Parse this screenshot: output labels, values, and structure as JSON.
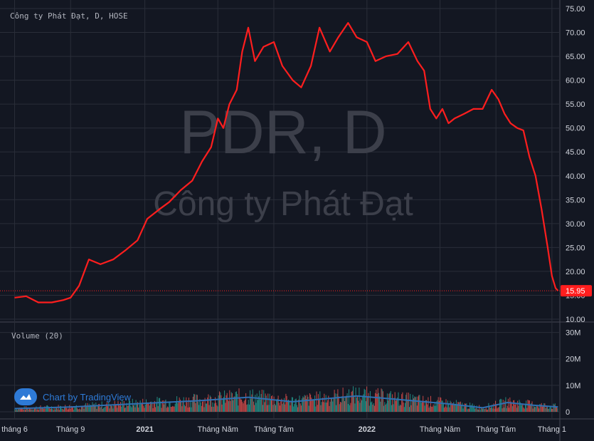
{
  "legend": {
    "symbol_line": "Công ty Phát Đạt, D, HOSE",
    "volume_label": "Volume (20)"
  },
  "watermark": {
    "ticker": "PDR, D",
    "company": "Công ty Phát Đạt"
  },
  "attribution": {
    "text": "Chart by TradingView",
    "icon": "tradingview-cloud-icon"
  },
  "colors": {
    "background": "#131722",
    "price_line": "#ff1e1e",
    "last_price_badge": "#ff1e1e",
    "volume_ma": "#2f6fb2",
    "volume_up": "#26a69a",
    "volume_down": "#ef5350",
    "grid": "#2a2e39",
    "axis_text": "#d1d4dc"
  },
  "chart_data": [
    {
      "type": "line",
      "title": "Công ty Phát Đạt, D, HOSE",
      "series": [
        {
          "name": "PDR",
          "x": [
            "2020-06-01",
            "2020-06-20",
            "2020-07-10",
            "2020-08-01",
            "2020-08-20",
            "2020-09-01",
            "2020-09-15",
            "2020-10-01",
            "2020-10-20",
            "2020-11-10",
            "2020-12-01",
            "2020-12-20",
            "2021-01-05",
            "2021-01-25",
            "2021-02-10",
            "2021-03-01",
            "2021-03-20",
            "2021-04-05",
            "2021-04-20",
            "2021-05-01",
            "2021-05-10",
            "2021-05-20",
            "2021-06-01",
            "2021-06-10",
            "2021-06-20",
            "2021-07-01",
            "2021-07-15",
            "2021-08-01",
            "2021-08-15",
            "2021-09-01",
            "2021-09-15",
            "2021-10-01",
            "2021-10-15",
            "2021-11-01",
            "2021-11-15",
            "2021-12-01",
            "2021-12-15",
            "2022-01-01",
            "2022-01-15",
            "2022-02-01",
            "2022-02-20",
            "2022-03-10",
            "2022-03-25",
            "2022-04-05",
            "2022-04-15",
            "2022-04-25",
            "2022-05-05",
            "2022-05-15",
            "2022-05-25",
            "2022-06-10",
            "2022-06-25",
            "2022-07-10",
            "2022-07-25",
            "2022-08-05",
            "2022-08-15",
            "2022-08-25",
            "2022-09-05",
            "2022-09-15",
            "2022-09-25",
            "2022-10-05",
            "2022-10-15",
            "2022-10-25",
            "2022-11-01",
            "2022-11-07",
            "2022-11-11"
          ],
          "y": [
            14.5,
            14.8,
            13.5,
            13.5,
            14.0,
            14.5,
            17.0,
            22.5,
            21.5,
            22.5,
            24.5,
            26.5,
            31.0,
            33.0,
            34.5,
            37.0,
            39.0,
            43.0,
            46.0,
            52.0,
            50.0,
            55.0,
            58.0,
            66.0,
            71.0,
            64.0,
            67.0,
            68.0,
            63.0,
            60.0,
            58.5,
            63.0,
            71.0,
            66.0,
            69.0,
            72.0,
            69.0,
            68.0,
            64.0,
            65.0,
            65.5,
            68.0,
            64.0,
            62.0,
            54.0,
            52.0,
            54.0,
            51.0,
            52.0,
            53.0,
            54.0,
            54.0,
            58.0,
            56.0,
            53.0,
            51.0,
            50.0,
            49.5,
            44.0,
            40.0,
            33.0,
            25.0,
            19.0,
            16.5,
            15.95
          ]
        }
      ],
      "ylim": [
        10,
        75
      ],
      "y_ticks": [
        "75.00",
        "70.00",
        "65.00",
        "60.00",
        "55.00",
        "50.00",
        "45.00",
        "40.00",
        "35.00",
        "30.00",
        "25.00",
        "20.00",
        "15.00",
        "10.00"
      ],
      "x_ticks": [
        "tháng 6",
        "Tháng 9",
        "2021",
        "Tháng Năm",
        "Tháng Tám",
        "2022",
        "Tháng Năm",
        "Tháng Tám",
        "Tháng 1"
      ],
      "x_tick_dates": [
        "2020-06-01",
        "2020-09-01",
        "2021-01-01",
        "2021-05-01",
        "2021-08-01",
        "2022-01-01",
        "2022-05-01",
        "2022-08-01",
        "2022-11-01"
      ],
      "last_price": "15.95",
      "grid": true
    },
    {
      "type": "bar",
      "title": "Volume (20)",
      "ylim": [
        0,
        35000000
      ],
      "y_ticks": [
        "30M",
        "20M",
        "10M",
        "0"
      ],
      "y_tick_values": [
        30000000,
        20000000,
        10000000,
        0
      ],
      "description_note": "",
      "ma_profile": {
        "x": [
          "2020-06-01",
          "2020-09-01",
          "2021-01-01",
          "2021-04-01",
          "2021-06-20",
          "2021-09-01",
          "2021-12-15",
          "2022-03-01",
          "2022-05-15",
          "2022-07-10",
          "2022-08-20",
          "2022-10-01",
          "2022-11-11"
        ],
        "y": [
          1200000,
          1800000,
          3200000,
          4200000,
          5500000,
          3800000,
          6000000,
          4500000,
          3000000,
          1500000,
          3500000,
          2500000,
          1800000
        ]
      }
    }
  ]
}
